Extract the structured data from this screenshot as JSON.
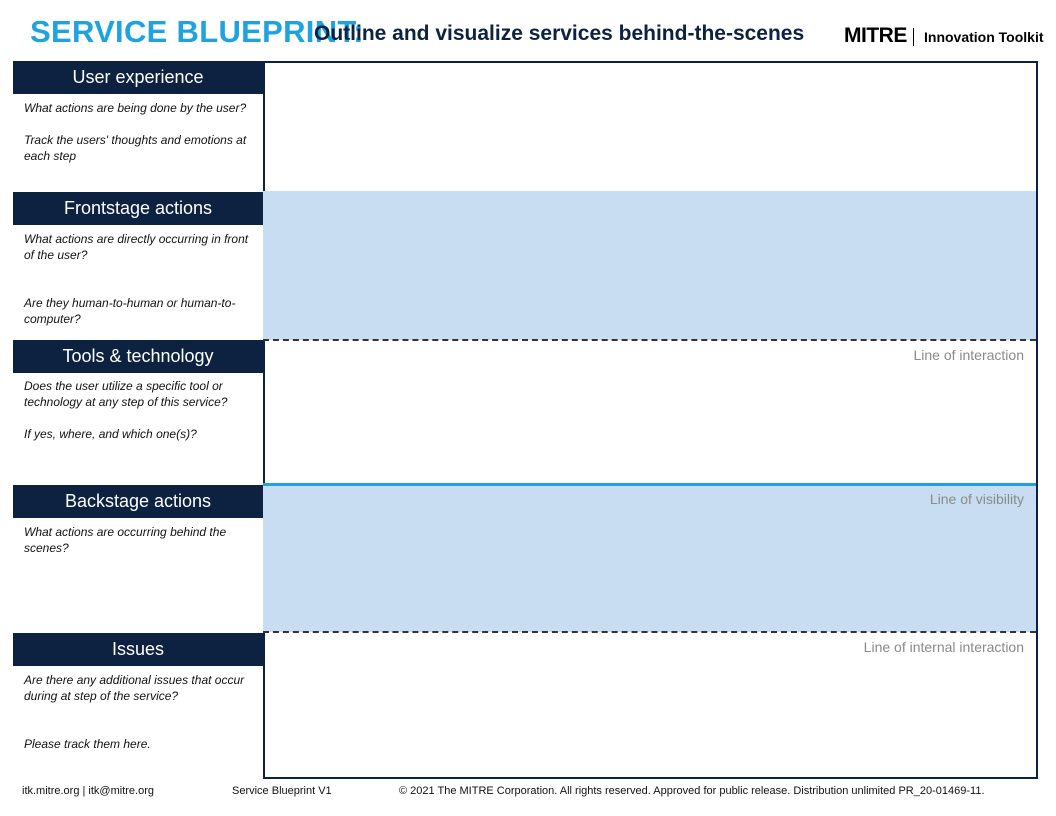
{
  "header": {
    "title": "SERVICE BLUEPRINT:",
    "subtitle": "Outline and visualize services behind-the-scenes",
    "brand": "MITRE",
    "toolkit": "Innovation Toolkit"
  },
  "sections": [
    {
      "label": "User experience",
      "desc1": "What actions are being done by the user?",
      "desc2": "Track the users' thoughts and emotions at each step"
    },
    {
      "label": "Frontstage actions",
      "desc1": "What actions are directly occurring in front of the user?",
      "desc2": "Are they human-to-human  or human-to-computer?"
    },
    {
      "label": "Tools & technology",
      "desc1": "Does the user utilize a specific tool or technology at any step of this service?",
      "desc2": "If yes, where, and which one(s)?"
    },
    {
      "label": "Backstage actions",
      "desc1": "What actions are occurring behind the scenes?",
      "desc2": ""
    },
    {
      "label": "Issues",
      "desc1": "Are there any additional issues that occur during at step of the service?",
      "desc2": "Please track them here."
    }
  ],
  "lines": {
    "interaction": "Line of interaction",
    "visibility": "Line of visibility",
    "internal": "Line of internal interaction"
  },
  "footer": {
    "contact": "itk.mitre.org | itk@mitre.org",
    "version": "Service Blueprint V1",
    "copyright": "© 2021 The MITRE Corporation. All rights reserved. Approved for public release. Distribution unlimited PR_20-01469-11."
  },
  "colors": {
    "accent": "#1ea3e0",
    "navy": "#0d2240",
    "band": "#c8ddf2"
  }
}
